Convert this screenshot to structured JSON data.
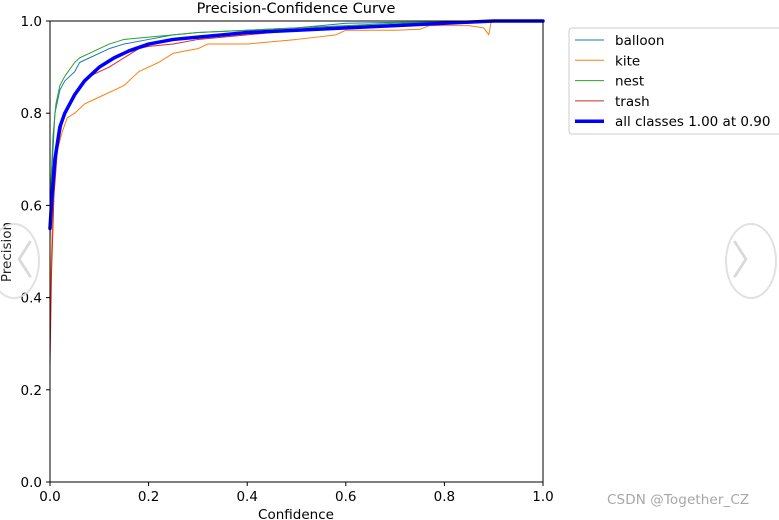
{
  "chart_data": {
    "type": "line",
    "title": "Precision-Confidence Curve",
    "xlabel": "Confidence",
    "ylabel": "Precision",
    "xlim": [
      0,
      1
    ],
    "ylim": [
      0,
      1
    ],
    "xticks": [
      "0.0",
      "0.2",
      "0.4",
      "0.6",
      "0.8",
      "1.0"
    ],
    "yticks": [
      "0.0",
      "0.2",
      "0.4",
      "0.6",
      "0.8",
      "1.0"
    ],
    "legend_position": "outside-top-right",
    "series": [
      {
        "name": "balloon",
        "label": "balloon",
        "color": "#1f77b4",
        "width": 1,
        "points": [
          [
            0.0,
            0.52
          ],
          [
            0.002,
            0.62
          ],
          [
            0.006,
            0.72
          ],
          [
            0.01,
            0.8
          ],
          [
            0.02,
            0.85
          ],
          [
            0.03,
            0.87
          ],
          [
            0.05,
            0.89
          ],
          [
            0.06,
            0.91
          ],
          [
            0.08,
            0.92
          ],
          [
            0.1,
            0.93
          ],
          [
            0.12,
            0.94
          ],
          [
            0.15,
            0.95
          ],
          [
            0.2,
            0.96
          ],
          [
            0.25,
            0.97
          ],
          [
            0.3,
            0.975
          ],
          [
            0.4,
            0.98
          ],
          [
            0.5,
            0.985
          ],
          [
            0.55,
            0.99
          ],
          [
            0.6,
            0.995
          ],
          [
            0.7,
            0.997
          ],
          [
            0.8,
            0.998
          ],
          [
            0.9,
            1.0
          ],
          [
            1.0,
            1.0
          ]
        ]
      },
      {
        "name": "kite",
        "label": "kite",
        "color": "#ff7f0e",
        "width": 1,
        "points": [
          [
            0.0,
            0.35
          ],
          [
            0.003,
            0.5
          ],
          [
            0.008,
            0.65
          ],
          [
            0.015,
            0.72
          ],
          [
            0.025,
            0.76
          ],
          [
            0.035,
            0.79
          ],
          [
            0.05,
            0.8
          ],
          [
            0.07,
            0.82
          ],
          [
            0.09,
            0.83
          ],
          [
            0.11,
            0.84
          ],
          [
            0.13,
            0.85
          ],
          [
            0.15,
            0.86
          ],
          [
            0.17,
            0.88
          ],
          [
            0.18,
            0.89
          ],
          [
            0.2,
            0.9
          ],
          [
            0.22,
            0.91
          ],
          [
            0.25,
            0.93
          ],
          [
            0.3,
            0.94
          ],
          [
            0.32,
            0.95
          ],
          [
            0.4,
            0.95
          ],
          [
            0.5,
            0.96
          ],
          [
            0.58,
            0.97
          ],
          [
            0.6,
            0.98
          ],
          [
            0.7,
            0.98
          ],
          [
            0.75,
            0.982
          ],
          [
            0.77,
            0.99
          ],
          [
            0.85,
            0.99
          ],
          [
            0.88,
            0.985
          ],
          [
            0.89,
            0.97
          ],
          [
            0.895,
            1.0
          ],
          [
            1.0,
            1.0
          ]
        ]
      },
      {
        "name": "nest",
        "label": "nest",
        "color": "#2ca02c",
        "width": 1,
        "points": [
          [
            0.0,
            0.55
          ],
          [
            0.002,
            0.65
          ],
          [
            0.006,
            0.75
          ],
          [
            0.012,
            0.82
          ],
          [
            0.02,
            0.86
          ],
          [
            0.03,
            0.88
          ],
          [
            0.05,
            0.91
          ],
          [
            0.06,
            0.92
          ],
          [
            0.08,
            0.93
          ],
          [
            0.1,
            0.94
          ],
          [
            0.12,
            0.95
          ],
          [
            0.15,
            0.96
          ],
          [
            0.2,
            0.965
          ],
          [
            0.25,
            0.97
          ],
          [
            0.3,
            0.975
          ],
          [
            0.4,
            0.98
          ],
          [
            0.5,
            0.985
          ],
          [
            0.6,
            0.99
          ],
          [
            0.7,
            0.995
          ],
          [
            0.8,
            0.998
          ],
          [
            0.9,
            1.0
          ],
          [
            1.0,
            1.0
          ]
        ]
      },
      {
        "name": "trash",
        "label": "trash",
        "color": "#d62728",
        "width": 1,
        "points": [
          [
            0.0,
            0.25
          ],
          [
            0.003,
            0.45
          ],
          [
            0.008,
            0.62
          ],
          [
            0.015,
            0.72
          ],
          [
            0.025,
            0.78
          ],
          [
            0.04,
            0.82
          ],
          [
            0.06,
            0.86
          ],
          [
            0.08,
            0.88
          ],
          [
            0.1,
            0.89
          ],
          [
            0.12,
            0.9
          ],
          [
            0.15,
            0.92
          ],
          [
            0.18,
            0.94
          ],
          [
            0.2,
            0.945
          ],
          [
            0.25,
            0.95
          ],
          [
            0.3,
            0.96
          ],
          [
            0.4,
            0.97
          ],
          [
            0.5,
            0.98
          ],
          [
            0.6,
            0.985
          ],
          [
            0.7,
            0.99
          ],
          [
            0.8,
            0.995
          ],
          [
            0.9,
            1.0
          ],
          [
            1.0,
            1.0
          ]
        ]
      },
      {
        "name": "all",
        "label": "all classes 1.00 at 0.90",
        "color": "#0000ff",
        "width": 3.5,
        "points": [
          [
            0.0,
            0.55
          ],
          [
            0.004,
            0.62
          ],
          [
            0.01,
            0.7
          ],
          [
            0.02,
            0.77
          ],
          [
            0.03,
            0.8
          ],
          [
            0.05,
            0.84
          ],
          [
            0.07,
            0.87
          ],
          [
            0.1,
            0.9
          ],
          [
            0.13,
            0.92
          ],
          [
            0.16,
            0.935
          ],
          [
            0.2,
            0.95
          ],
          [
            0.25,
            0.96
          ],
          [
            0.3,
            0.965
          ],
          [
            0.35,
            0.97
          ],
          [
            0.4,
            0.975
          ],
          [
            0.5,
            0.98
          ],
          [
            0.6,
            0.985
          ],
          [
            0.7,
            0.99
          ],
          [
            0.8,
            0.995
          ],
          [
            0.9,
            1.0
          ],
          [
            1.0,
            1.0
          ]
        ]
      }
    ]
  },
  "watermark": "CSDN @Together_CZ",
  "nav": {
    "prev_icon": "chevron-left-icon",
    "next_icon": "chevron-right-icon",
    "prev_glyph": "〈",
    "next_glyph": "〉"
  }
}
